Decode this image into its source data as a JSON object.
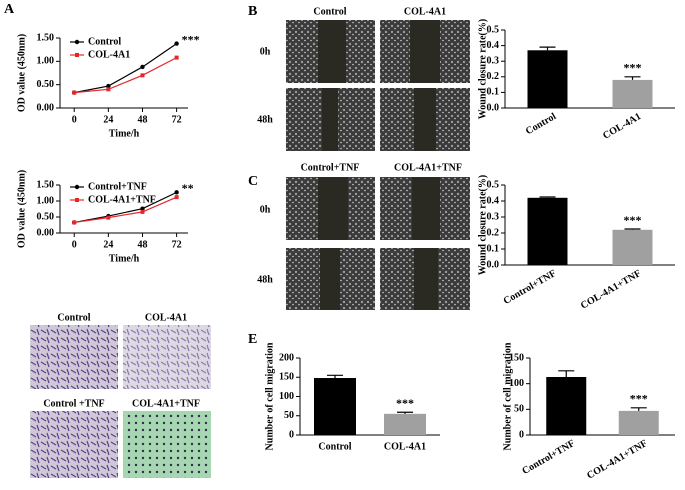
{
  "panels": [
    "A",
    "B",
    "C",
    "E"
  ],
  "images": {
    "b_cols": [
      "Control",
      "COL-4A1"
    ],
    "b_rows": [
      "0h",
      "48h"
    ],
    "c_cols": [
      "Control+TNF",
      "COL-4A1+TNF"
    ],
    "c_rows": [
      "0h",
      "48h"
    ],
    "transwell": [
      "Control",
      "COL-4A1",
      "Control +TNF",
      "COL-4A1+TNF"
    ]
  },
  "chart_data": [
    {
      "type": "line",
      "x": [
        0,
        24,
        48,
        72
      ],
      "xlim": [
        -10,
        80
      ],
      "xticks": [
        0,
        24,
        48,
        72
      ],
      "ylim": [
        0,
        1.5
      ],
      "yticks": [
        {
          "value": 0,
          "label": "0.00"
        },
        {
          "value": 0.5,
          "label": "0.50"
        },
        {
          "value": 1,
          "label": "1.00"
        },
        {
          "value": 1.5,
          "label": "1.50"
        }
      ],
      "ylabel": "OD value (450nm)",
      "xlabel": "Time/h",
      "annotation": "***",
      "series": [
        {
          "name": "Control",
          "color": "#000000",
          "values": [
            0.33,
            0.47,
            0.88,
            1.38
          ]
        },
        {
          "name": "COL-4A1",
          "color": "#e8262a",
          "values": [
            0.33,
            0.4,
            0.7,
            1.08
          ]
        }
      ]
    },
    {
      "type": "line",
      "x": [
        0,
        24,
        48,
        72
      ],
      "xlim": [
        -10,
        80
      ],
      "xticks": [
        0,
        24,
        48,
        72
      ],
      "ylim": [
        0,
        1.5
      ],
      "yticks": [
        {
          "value": 0,
          "label": "0.00"
        },
        {
          "value": 0.5,
          "label": "0.50"
        },
        {
          "value": 1,
          "label": "1.00"
        },
        {
          "value": 1.5,
          "label": "1.50"
        }
      ],
      "ylabel": "OD value (450nm)",
      "xlabel": "Time/h",
      "annotation": "**",
      "series": [
        {
          "name": "Control+TNF",
          "color": "#000000",
          "values": [
            0.33,
            0.53,
            0.76,
            1.27
          ]
        },
        {
          "name": "COL-4A1+TNF",
          "color": "#e8262a",
          "values": [
            0.33,
            0.48,
            0.66,
            1.12
          ]
        }
      ]
    },
    {
      "type": "bar",
      "categories": [
        "Control",
        "COL-4A1"
      ],
      "values": [
        0.37,
        0.18
      ],
      "errors": [
        0.02,
        0.02
      ],
      "colors": [
        "#000000",
        "#a0a0a0"
      ],
      "ylim": [
        0,
        0.5
      ],
      "yticks": [
        {
          "value": 0,
          "label": "0.0"
        },
        0.1,
        0.2,
        0.3,
        0.4,
        0.5
      ],
      "ylabel": "Wound closure rate(%)",
      "annotation": "***"
    },
    {
      "type": "bar",
      "categories": [
        "Control+TNF",
        "COL-4A1+TNF"
      ],
      "values": [
        0.42,
        0.22
      ],
      "errors": [
        0.005,
        0.005
      ],
      "colors": [
        "#000000",
        "#a0a0a0"
      ],
      "ylim": [
        0,
        0.5
      ],
      "yticks": [
        {
          "value": 0,
          "label": "0.0"
        },
        0.1,
        0.2,
        0.3,
        0.4,
        0.5
      ],
      "ylabel": "Wound closure rate(%)",
      "annotation": "***"
    },
    {
      "type": "bar",
      "categories": [
        "Control",
        "COL-4A1"
      ],
      "values": [
        148,
        55
      ],
      "errors": [
        7,
        4
      ],
      "colors": [
        "#000000",
        "#a0a0a0"
      ],
      "ylim": [
        0,
        200
      ],
      "yticks": [
        0,
        50,
        100,
        150,
        200
      ],
      "ylabel": "Number of cell migration",
      "annotation": "***"
    },
    {
      "type": "bar",
      "categories": [
        "Control+TNF",
        "COL-4A1+TNF"
      ],
      "values": [
        113,
        47
      ],
      "errors": [
        12,
        6
      ],
      "colors": [
        "#000000",
        "#a0a0a0"
      ],
      "ylim": [
        0,
        150
      ],
      "yticks": [
        0,
        50,
        100,
        150
      ],
      "ylabel": "Number of cell migration",
      "annotation": "***"
    }
  ]
}
